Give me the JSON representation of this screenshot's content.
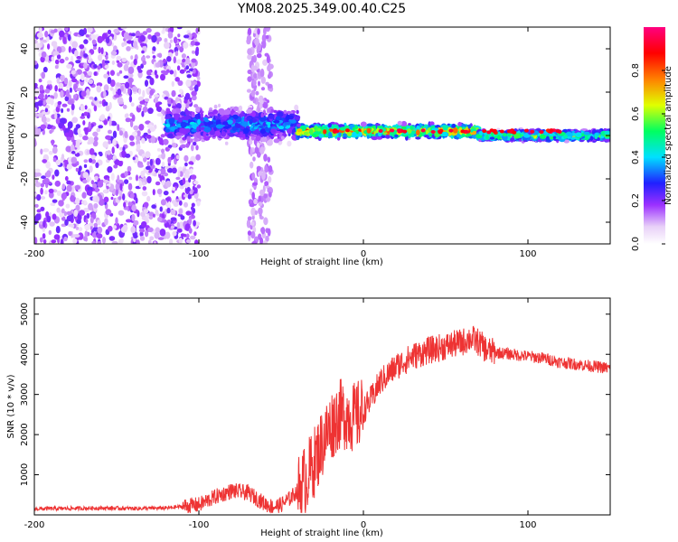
{
  "title": "YM08.2025.349.00.40.C25",
  "chart_data": [
    {
      "type": "heatmap",
      "name": "spectrogram",
      "xlabel": "Height of straight line (km)",
      "ylabel": "Frequency (Hz)",
      "xlim": [
        -200,
        150
      ],
      "ylim": [
        -50,
        50
      ],
      "x_ticks": [
        -200,
        -100,
        0,
        100
      ],
      "y_ticks": [
        -40,
        -20,
        0,
        20,
        40
      ],
      "colorbar": {
        "label": "Normalized spectral amplitude",
        "range": [
          0,
          1
        ],
        "ticks": [
          0.0,
          0.2,
          0.4,
          0.6,
          0.8
        ],
        "colors": [
          "#ffffff",
          "#e8d0f8",
          "#9b30ff",
          "#2020ff",
          "#00e0ff",
          "#00ff60",
          "#e0ff00",
          "#ff8000",
          "#ff0000",
          "#ff0080"
        ]
      },
      "regions": [
        {
          "x": [
            -200,
            -120
          ],
          "desc": "broadband noise",
          "amp": 0.15
        },
        {
          "x": [
            -120,
            -40
          ],
          "center_hz": 5,
          "bandwidth_hz": 10,
          "amp": 0.35
        },
        {
          "x": [
            -40,
            70
          ],
          "center_hz": 2,
          "bandwidth_hz": 4,
          "amp": 0.7
        },
        {
          "x": [
            70,
            150
          ],
          "center_hz": 0,
          "bandwidth_hz": 3,
          "amp": 0.55
        }
      ]
    },
    {
      "type": "line",
      "name": "snr",
      "xlabel": "Height of straight line (km)",
      "ylabel": "SNR (10 * v/v)",
      "xlim": [
        -200,
        150
      ],
      "ylim": [
        0,
        5400
      ],
      "x_ticks": [
        -200,
        -100,
        0,
        100
      ],
      "y_ticks": [
        1000,
        2000,
        3000,
        4000,
        5000
      ],
      "color": "#ee3333",
      "series": [
        {
          "name": "SNR",
          "x": [
            -200,
            -180,
            -160,
            -140,
            -120,
            -100,
            -90,
            -80,
            -70,
            -60,
            -55,
            -50,
            -45,
            -40,
            -35,
            -30,
            -25,
            -20,
            -15,
            -10,
            -5,
            0,
            5,
            10,
            20,
            30,
            40,
            50,
            60,
            65,
            70,
            75,
            80,
            90,
            100,
            110,
            120,
            130,
            140,
            150
          ],
          "y": [
            150,
            160,
            170,
            160,
            170,
            250,
            450,
            600,
            550,
            280,
            200,
            250,
            400,
            600,
            900,
            1300,
            1800,
            2200,
            2500,
            2500,
            2400,
            2600,
            2900,
            3300,
            3700,
            3950,
            4100,
            4200,
            4300,
            4400,
            4300,
            4100,
            4050,
            4000,
            3950,
            3900,
            3800,
            3750,
            3700,
            3650
          ]
        }
      ]
    }
  ]
}
